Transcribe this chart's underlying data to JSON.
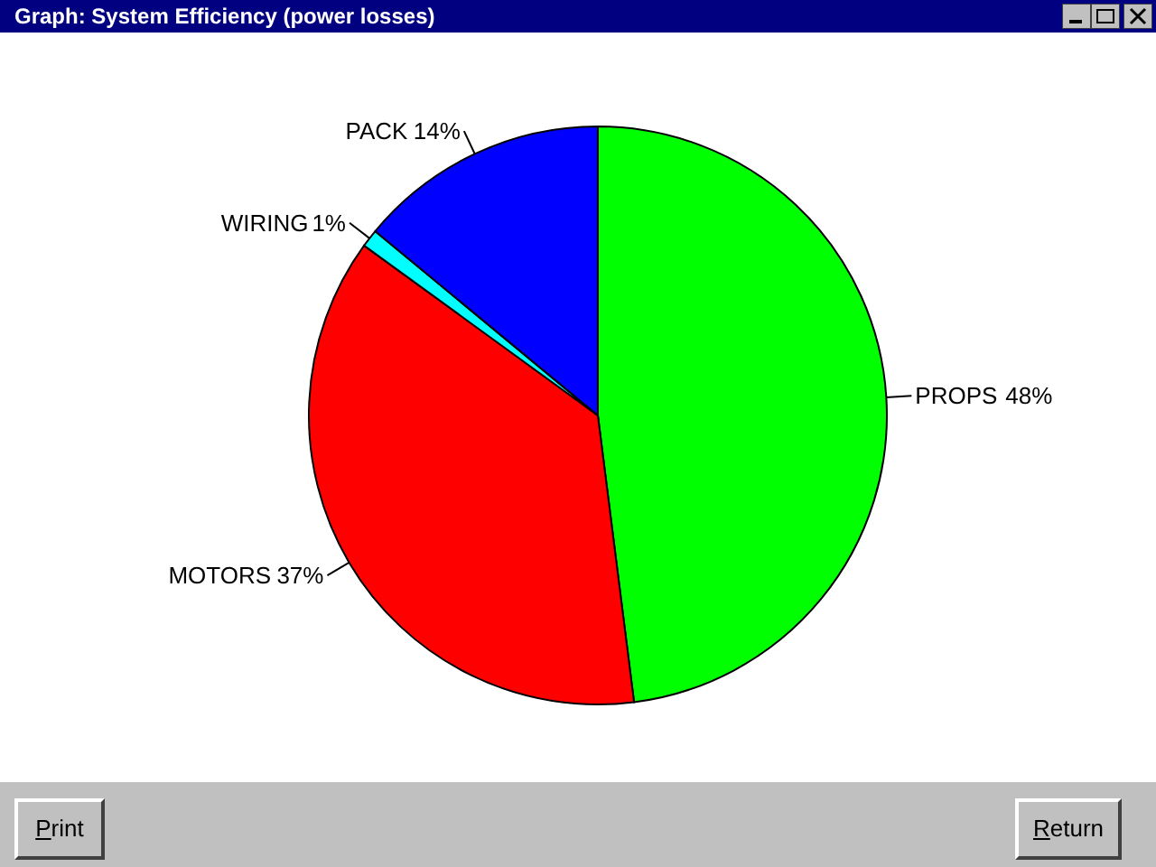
{
  "chart_data": {
    "type": "pie",
    "title": "Graph:  System Efficiency (power losses)",
    "categories": [
      "PROPS",
      "MOTORS",
      "WIRING",
      "PACK"
    ],
    "values": [
      48,
      37,
      1,
      14
    ],
    "colors": [
      "#00ff00",
      "#ff0000",
      "#00ffff",
      "#0000ff"
    ],
    "value_labels": [
      "48%",
      "37%",
      "1%",
      "14%"
    ],
    "annotations": [
      "Print",
      "Return"
    ]
  }
}
